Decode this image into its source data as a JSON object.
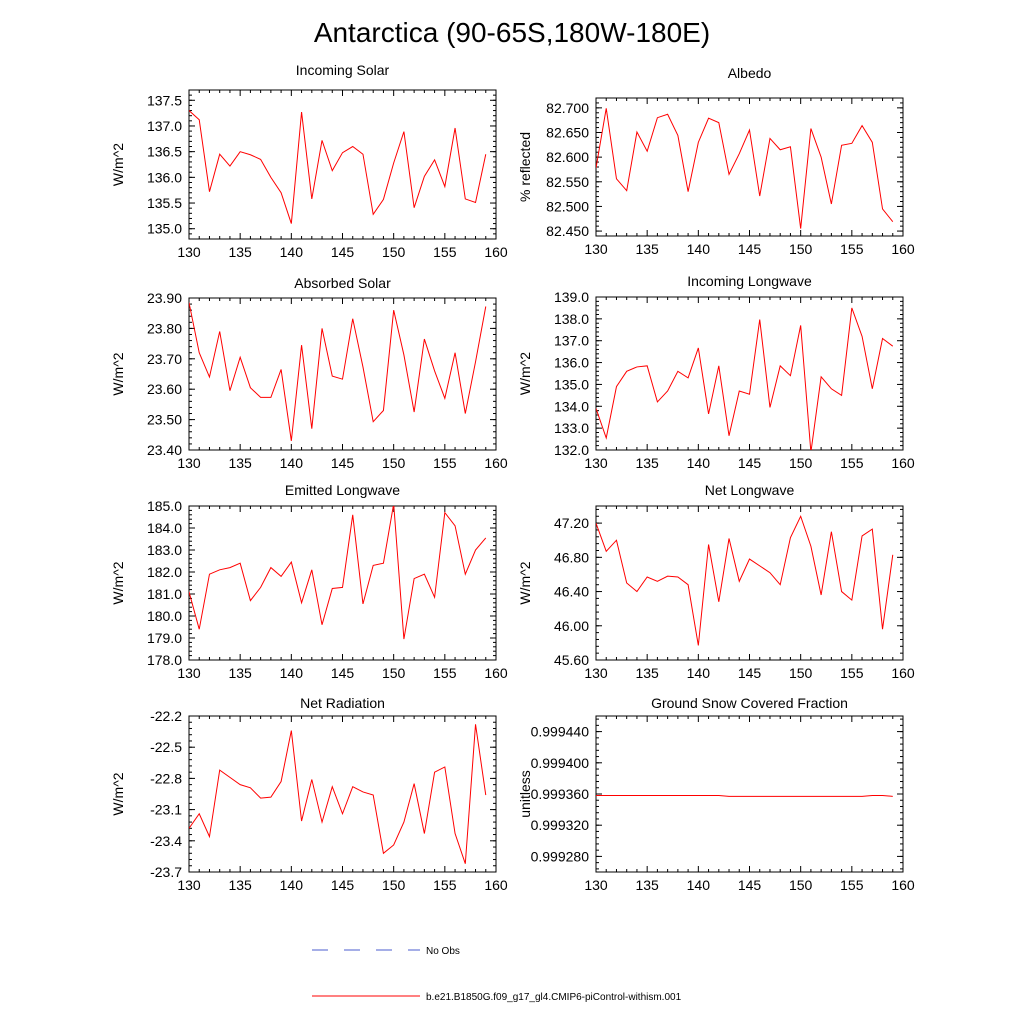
{
  "page_title": "Antarctica (90-65S,180W-180E)",
  "colors": {
    "model_line": "#ff0000",
    "obs_line": "#4b5ccf",
    "axis": "#000000"
  },
  "legend": {
    "obs_label": "No Obs",
    "model_label": "b.e21.B1850G.f09_g17_gl4.CMIP6-piControl-withism.001"
  },
  "chart_data": [
    {
      "type": "line",
      "title": "Incoming Solar",
      "ylabel": "W/m^2",
      "xlim": [
        130,
        160
      ],
      "ylim": [
        134.8,
        137.7
      ],
      "yticks": [
        135.0,
        135.5,
        136.0,
        136.5,
        137.0,
        137.5
      ],
      "yticklabels": [
        "135.0",
        "135.5",
        "136.0",
        "136.5",
        "137.0",
        "137.5"
      ],
      "xticks": [
        130,
        135,
        140,
        145,
        150,
        155,
        160
      ],
      "x": [
        130,
        131,
        132,
        133,
        134,
        135,
        136,
        137,
        138,
        139,
        140,
        141,
        142,
        143,
        144,
        145,
        146,
        147,
        148,
        149,
        150,
        151,
        152,
        153,
        154,
        155,
        156,
        157,
        158,
        159
      ],
      "series": [
        {
          "values": [
            137.3,
            137.12,
            135.72,
            136.45,
            136.22,
            136.5,
            136.44,
            136.35,
            136.0,
            135.7,
            135.1,
            137.27,
            135.58,
            136.72,
            136.13,
            136.48,
            136.6,
            136.45,
            135.28,
            135.57,
            136.28,
            136.89,
            135.41,
            136.02,
            136.34,
            135.82,
            136.96,
            135.58,
            135.51,
            136.45
          ]
        }
      ]
    },
    {
      "type": "line",
      "title": "Albedo",
      "ylabel": "% reflected",
      "xlim": [
        130,
        160
      ],
      "ylim": [
        82.44,
        82.72
      ],
      "yticks": [
        82.45,
        82.5,
        82.55,
        82.6,
        82.65,
        82.7
      ],
      "yticklabels": [
        "82.450",
        "82.500",
        "82.550",
        "82.600",
        "82.650",
        "82.700"
      ],
      "xticks": [
        130,
        135,
        140,
        145,
        150,
        155,
        160
      ],
      "x": [
        130,
        131,
        132,
        133,
        134,
        135,
        136,
        137,
        138,
        139,
        140,
        141,
        142,
        143,
        144,
        145,
        146,
        147,
        148,
        149,
        150,
        151,
        152,
        153,
        154,
        155,
        156,
        157,
        158,
        159
      ],
      "series": [
        {
          "values": [
            82.578,
            82.699,
            82.556,
            82.532,
            82.651,
            82.612,
            82.68,
            82.687,
            82.644,
            82.53,
            82.63,
            82.679,
            82.67,
            82.565,
            82.607,
            82.655,
            82.521,
            82.638,
            82.615,
            82.621,
            82.455,
            82.658,
            82.6,
            82.505,
            82.624,
            82.628,
            82.664,
            82.63,
            82.495,
            82.469
          ]
        }
      ]
    },
    {
      "type": "line",
      "title": "Absorbed Solar",
      "ylabel": "W/m^2",
      "xlim": [
        130,
        160
      ],
      "ylim": [
        23.4,
        23.9
      ],
      "yticks": [
        23.4,
        23.5,
        23.6,
        23.7,
        23.8,
        23.9
      ],
      "yticklabels": [
        "23.40",
        "23.50",
        "23.60",
        "23.70",
        "23.80",
        "23.90"
      ],
      "xticks": [
        130,
        135,
        140,
        145,
        150,
        155,
        160
      ],
      "x": [
        130,
        131,
        132,
        133,
        134,
        135,
        136,
        137,
        138,
        139,
        140,
        141,
        142,
        143,
        144,
        145,
        146,
        147,
        148,
        149,
        150,
        151,
        152,
        153,
        154,
        155,
        156,
        157,
        158,
        159
      ],
      "series": [
        {
          "values": [
            23.885,
            23.72,
            23.64,
            23.79,
            23.595,
            23.705,
            23.605,
            23.573,
            23.573,
            23.665,
            23.43,
            23.745,
            23.47,
            23.8,
            23.643,
            23.633,
            23.832,
            23.673,
            23.493,
            23.53,
            23.86,
            23.713,
            23.525,
            23.765,
            23.66,
            23.57,
            23.72,
            23.52,
            23.69,
            23.872
          ]
        }
      ]
    },
    {
      "type": "line",
      "title": "Incoming Longwave",
      "ylabel": "W/m^2",
      "xlim": [
        130,
        160
      ],
      "ylim": [
        132.0,
        139.0
      ],
      "yticks": [
        132.0,
        133.0,
        134.0,
        135.0,
        136.0,
        137.0,
        138.0,
        139.0
      ],
      "yticklabels": [
        "132.0",
        "133.0",
        "134.0",
        "135.0",
        "136.0",
        "137.0",
        "138.0",
        "139.0"
      ],
      "xticks": [
        130,
        135,
        140,
        145,
        150,
        155,
        160
      ],
      "x": [
        130,
        131,
        132,
        133,
        134,
        135,
        136,
        137,
        138,
        139,
        140,
        141,
        142,
        143,
        144,
        145,
        146,
        147,
        148,
        149,
        150,
        151,
        152,
        153,
        154,
        155,
        156,
        157,
        158,
        159
      ],
      "series": [
        {
          "values": [
            133.9,
            132.55,
            134.9,
            135.6,
            135.8,
            135.85,
            134.2,
            134.7,
            135.6,
            135.3,
            136.67,
            133.65,
            135.85,
            132.65,
            134.7,
            134.55,
            137.97,
            133.95,
            135.85,
            135.4,
            137.7,
            131.9,
            135.35,
            134.8,
            134.5,
            138.5,
            137.2,
            134.8,
            137.1,
            136.75
          ]
        }
      ]
    },
    {
      "type": "line",
      "title": "Emitted Longwave",
      "ylabel": "W/m^2",
      "xlim": [
        130,
        160
      ],
      "ylim": [
        178.0,
        185.0
      ],
      "yticks": [
        178.0,
        179.0,
        180.0,
        181.0,
        182.0,
        183.0,
        184.0,
        185.0
      ],
      "yticklabels": [
        "178.0",
        "179.0",
        "180.0",
        "181.0",
        "182.0",
        "183.0",
        "184.0",
        "185.0"
      ],
      "xticks": [
        130,
        135,
        140,
        145,
        150,
        155,
        160
      ],
      "x": [
        130,
        131,
        132,
        133,
        134,
        135,
        136,
        137,
        138,
        139,
        140,
        141,
        142,
        143,
        144,
        145,
        146,
        147,
        148,
        149,
        150,
        151,
        152,
        153,
        154,
        155,
        156,
        157,
        158,
        159
      ],
      "series": [
        {
          "values": [
            181.1,
            179.4,
            181.9,
            182.1,
            182.2,
            182.4,
            180.7,
            181.3,
            182.2,
            181.8,
            182.45,
            180.6,
            182.1,
            179.6,
            181.25,
            181.3,
            184.6,
            180.55,
            182.3,
            182.4,
            185.1,
            178.95,
            181.7,
            181.9,
            180.85,
            184.7,
            184.1,
            181.9,
            183.0,
            183.55
          ]
        }
      ]
    },
    {
      "type": "line",
      "title": "Net Longwave",
      "ylabel": "W/m^2",
      "xlim": [
        130,
        160
      ],
      "ylim": [
        45.6,
        47.4
      ],
      "yticks": [
        45.6,
        46.0,
        46.4,
        46.8,
        47.2
      ],
      "yticklabels": [
        "45.60",
        "46.00",
        "46.40",
        "46.80",
        "47.20"
      ],
      "xticks": [
        130,
        135,
        140,
        145,
        150,
        155,
        160
      ],
      "x": [
        130,
        131,
        132,
        133,
        134,
        135,
        136,
        137,
        138,
        139,
        140,
        141,
        142,
        143,
        144,
        145,
        146,
        147,
        148,
        149,
        150,
        151,
        152,
        153,
        154,
        155,
        156,
        157,
        158,
        159
      ],
      "series": [
        {
          "values": [
            47.2,
            46.87,
            47.0,
            46.5,
            46.4,
            46.57,
            46.52,
            46.58,
            46.57,
            46.48,
            45.77,
            46.95,
            46.28,
            47.02,
            46.52,
            46.78,
            46.7,
            46.62,
            46.48,
            47.03,
            47.28,
            46.93,
            46.36,
            47.1,
            46.4,
            46.3,
            47.05,
            47.13,
            45.96,
            46.83
          ]
        }
      ]
    },
    {
      "type": "line",
      "title": "Net Radiation",
      "ylabel": "W/m^2",
      "xlim": [
        130,
        160
      ],
      "ylim": [
        -23.7,
        -22.2
      ],
      "yticks": [
        -23.7,
        -23.4,
        -23.1,
        -22.8,
        -22.5,
        -22.2
      ],
      "yticklabels": [
        "-23.7",
        "-23.4",
        "-23.1",
        "-22.8",
        "-22.5",
        "-22.2"
      ],
      "xticks": [
        130,
        135,
        140,
        145,
        150,
        155,
        160
      ],
      "x": [
        130,
        131,
        132,
        133,
        134,
        135,
        136,
        137,
        138,
        139,
        140,
        141,
        142,
        143,
        144,
        145,
        146,
        147,
        148,
        149,
        150,
        151,
        152,
        153,
        154,
        155,
        156,
        157,
        158,
        159
      ],
      "series": [
        {
          "values": [
            -23.28,
            -23.14,
            -23.36,
            -22.72,
            -22.79,
            -22.86,
            -22.89,
            -22.99,
            -22.98,
            -22.83,
            -22.34,
            -23.21,
            -22.81,
            -23.22,
            -22.88,
            -23.14,
            -22.88,
            -22.93,
            -22.96,
            -23.52,
            -23.44,
            -23.22,
            -22.85,
            -23.33,
            -22.74,
            -22.69,
            -23.33,
            -23.62,
            -22.28,
            -22.96
          ]
        }
      ]
    },
    {
      "type": "line",
      "title": "Ground Snow Covered Fraction",
      "ylabel": "unitless",
      "xlim": [
        130,
        160
      ],
      "ylim": [
        0.99926,
        0.99946
      ],
      "yticks": [
        0.99928,
        0.99932,
        0.99936,
        0.9994,
        0.99944
      ],
      "yticklabels": [
        "0.999280",
        "0.999320",
        "0.999360",
        "0.999400",
        "0.999440"
      ],
      "xticks": [
        130,
        135,
        140,
        145,
        150,
        155,
        160
      ],
      "x": [
        130,
        131,
        132,
        133,
        134,
        135,
        136,
        137,
        138,
        139,
        140,
        141,
        142,
        143,
        144,
        145,
        146,
        147,
        148,
        149,
        150,
        151,
        152,
        153,
        154,
        155,
        156,
        157,
        158,
        159
      ],
      "series": [
        {
          "values": [
            0.999358,
            0.999358,
            0.999358,
            0.999358,
            0.999358,
            0.999358,
            0.999358,
            0.999358,
            0.999358,
            0.999358,
            0.999358,
            0.999358,
            0.999358,
            0.999357,
            0.999357,
            0.999357,
            0.999357,
            0.999357,
            0.999357,
            0.999357,
            0.999357,
            0.999357,
            0.999357,
            0.999357,
            0.999357,
            0.999357,
            0.999357,
            0.999358,
            0.999358,
            0.999357
          ]
        }
      ]
    }
  ]
}
